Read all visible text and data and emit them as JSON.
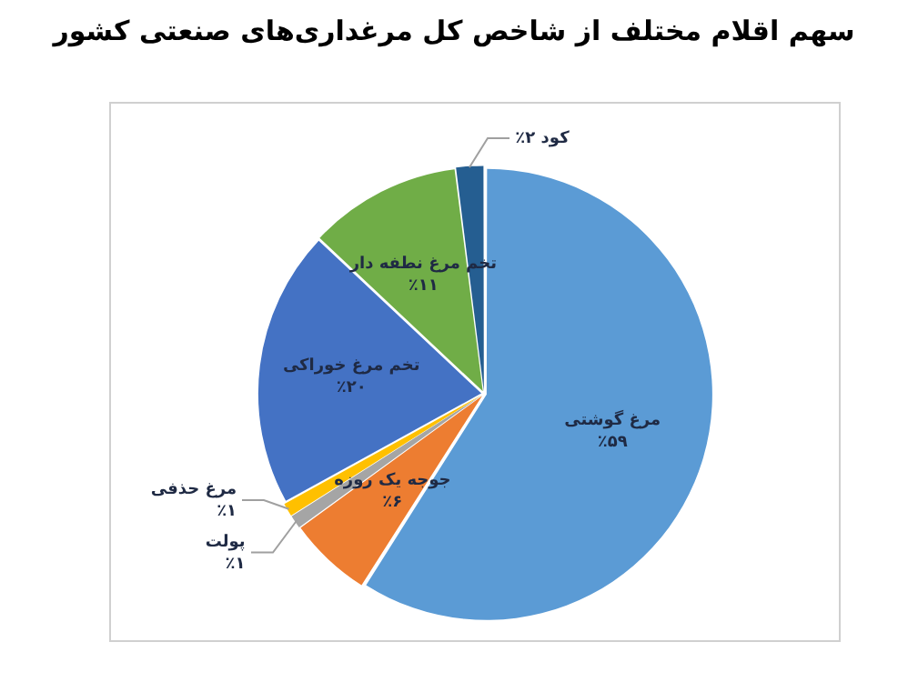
{
  "chart_data": {
    "type": "pie",
    "title": "سهم اقلام مختلف از شاخص کل مرغداری‌های صنعتی کشور",
    "categories": [
      "مرغ گوشتی",
      "جوجه یک روزه",
      "پولت",
      "مرغ حذفی",
      "تخم مرغ خوراکی",
      "تخم مرغ نطفه دار",
      "کود"
    ],
    "values": [
      59,
      6,
      1,
      1,
      20,
      11,
      2
    ],
    "colors": [
      "#5b9bd5",
      "#ed7d31",
      "#a5a5a5",
      "#ffc000",
      "#4472c4",
      "#70ad47",
      "#255e91"
    ],
    "value_labels": [
      "٪۵۹",
      "٪۶",
      "٪۱",
      "٪۱",
      "٪۲۰",
      "٪۱۱",
      "٪۲"
    ],
    "legend": false
  }
}
